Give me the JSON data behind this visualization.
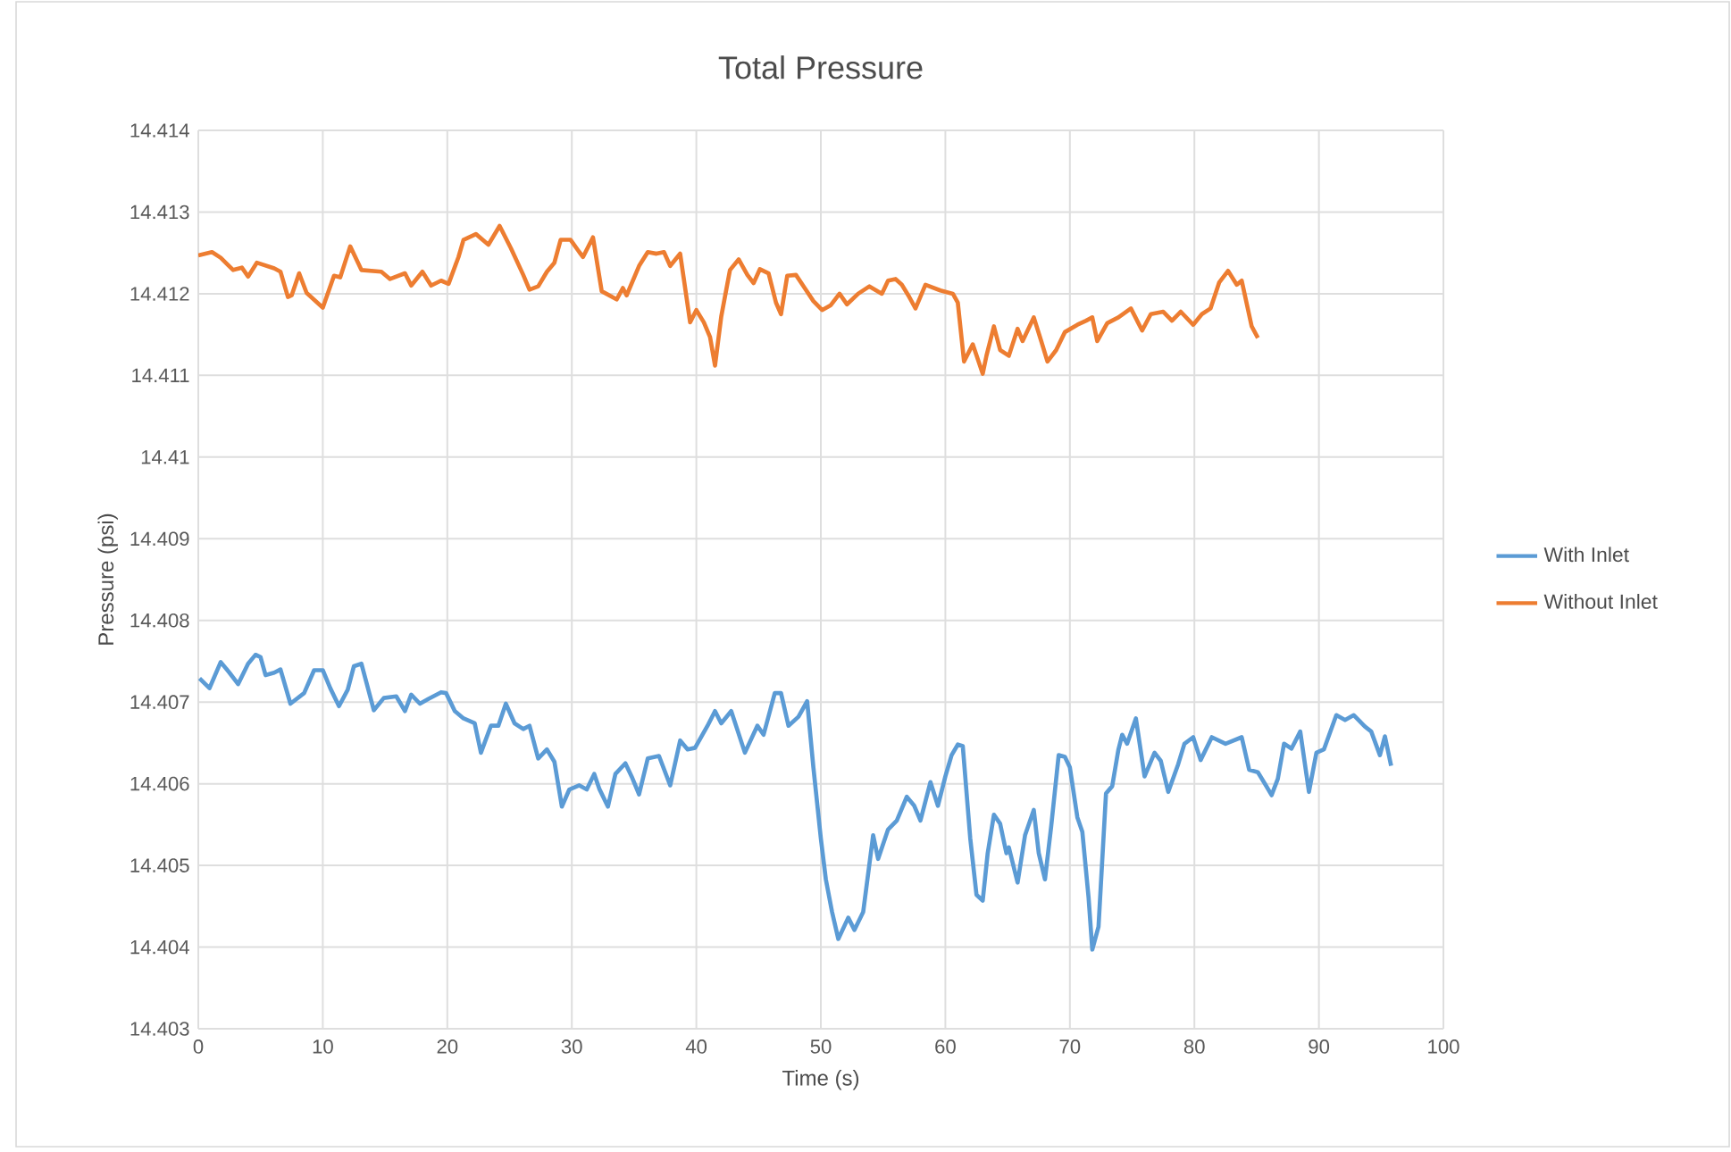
{
  "chart_data": {
    "type": "line",
    "title": "Total Pressure",
    "xlabel": "Time (s)",
    "ylabel": "Pressure (psi)",
    "xlim": [
      0,
      100
    ],
    "xticks": [
      0,
      10,
      20,
      30,
      40,
      50,
      60,
      70,
      80,
      90,
      100
    ],
    "ylim": [
      14.403,
      14.414
    ],
    "yticks": [
      14.403,
      14.404,
      14.405,
      14.406,
      14.407,
      14.408,
      14.409,
      14.41,
      14.411,
      14.412,
      14.413,
      14.414
    ],
    "grid": true,
    "legend": "right",
    "marker": "none",
    "line_style": "solid",
    "series": [
      {
        "name": "With Inlet",
        "color": "#5b9bd5",
        "x": [
          0.1,
          0.9,
          1.8,
          2.5,
          3.2,
          4,
          4.6,
          5,
          5.4,
          6.1,
          6.6,
          7.4,
          8.5,
          9.3,
          10,
          10.6,
          11.3,
          12,
          12.5,
          13.1,
          14.1,
          14.9,
          15.9,
          16.6,
          17.1,
          17.8,
          18.5,
          19.5,
          19.9,
          20.6,
          21.3,
          22.2,
          22.7,
          23.5,
          24.1,
          24.7,
          25.4,
          26.1,
          26.6,
          27.3,
          28,
          28.6,
          29.2,
          29.8,
          30.6,
          31.2,
          31.8,
          32.2,
          32.9,
          33.5,
          34.3,
          34.8,
          35.4,
          36.1,
          37,
          37.9,
          38.7,
          39.3,
          39.9,
          40.9,
          41.5,
          42,
          42.8,
          43.9,
          44.9,
          45.4,
          46.3,
          46.8,
          47.4,
          48.2,
          48.9,
          49.4,
          50,
          50.4,
          50.9,
          51.4,
          52.2,
          52.7,
          53.4,
          54.2,
          54.6,
          55.4,
          56.1,
          56.9,
          57.5,
          58,
          58.8,
          59.4,
          60,
          60.5,
          61,
          61.4,
          62,
          62.5,
          63,
          63.4,
          63.9,
          64.4,
          64.9,
          65.1,
          65.8,
          66.4,
          67.1,
          67.5,
          68,
          68.5,
          69.1,
          69.6,
          70,
          70.6,
          71,
          71.5,
          71.8,
          72.3,
          72.9,
          73.4,
          73.9,
          74.2,
          74.6,
          75.3,
          76,
          76.8,
          77.3,
          77.9,
          78.7,
          79.2,
          79.9,
          80.5,
          81.4,
          82.5,
          83.8,
          84.4,
          85.1,
          85.7,
          86.2,
          86.7,
          87.2,
          87.8,
          88.5,
          89.2,
          89.8,
          90.4,
          91.4,
          92.1,
          92.8,
          93.7,
          94.2,
          94.9,
          95.3,
          95.8
        ],
        "values": [
          14.40729,
          14.40717,
          14.40749,
          14.40736,
          14.40722,
          14.40747,
          14.40758,
          14.40755,
          14.40733,
          14.40736,
          14.4074,
          14.40698,
          14.40711,
          14.40739,
          14.40739,
          14.40717,
          14.40695,
          14.40715,
          14.40744,
          14.40747,
          14.4069,
          14.40705,
          14.40707,
          14.40689,
          14.40709,
          14.40698,
          14.40704,
          14.40712,
          14.40711,
          14.40689,
          14.4068,
          14.40674,
          14.40638,
          14.40671,
          14.40671,
          14.40698,
          14.40674,
          14.40667,
          14.40671,
          14.40631,
          14.40642,
          14.40627,
          14.40572,
          14.40593,
          14.40598,
          14.40593,
          14.40612,
          14.40594,
          14.40572,
          14.40612,
          14.40625,
          14.40609,
          14.40587,
          14.40631,
          14.40634,
          14.40598,
          14.40653,
          14.40642,
          14.40644,
          14.40671,
          14.40689,
          14.40674,
          14.40689,
          14.40638,
          14.40671,
          14.4066,
          14.40711,
          14.40711,
          14.40671,
          14.40682,
          14.40701,
          14.4062,
          14.40533,
          14.40483,
          14.40443,
          14.4041,
          14.40436,
          14.40421,
          14.40443,
          14.40537,
          14.40508,
          14.40544,
          14.40555,
          14.40584,
          14.40573,
          14.40555,
          14.40602,
          14.40573,
          14.40609,
          14.40635,
          14.40648,
          14.40646,
          14.40533,
          14.40464,
          14.40457,
          14.40515,
          14.40562,
          14.40551,
          14.40515,
          14.40522,
          14.40479,
          14.40537,
          14.40568,
          14.40515,
          14.40483,
          14.40548,
          14.40635,
          14.40633,
          14.4062,
          14.40559,
          14.40541,
          14.40461,
          14.40397,
          14.40425,
          14.40588,
          14.40597,
          14.40642,
          14.4066,
          14.40649,
          14.4068,
          14.40609,
          14.40638,
          14.40628,
          14.4059,
          14.40624,
          14.40649,
          14.40657,
          14.40629,
          14.40657,
          14.40649,
          14.40657,
          14.40617,
          14.40614,
          14.40599,
          14.40586,
          14.40606,
          14.40649,
          14.40643,
          14.40664,
          14.4059,
          14.40638,
          14.40642,
          14.40684,
          14.40678,
          14.40684,
          14.4067,
          14.40664,
          14.40635,
          14.40658,
          14.40622
        ]
      },
      {
        "name": "Without Inlet",
        "color": "#ed7d31",
        "x": [
          0,
          1.1,
          1.8,
          2.8,
          3.5,
          4,
          4.7,
          6.1,
          6.6,
          7.2,
          7.5,
          8.1,
          8.7,
          10,
          10.9,
          11.4,
          12.2,
          13.1,
          14.7,
          15.4,
          16.6,
          17.1,
          18,
          18.7,
          19.5,
          20.1,
          20.9,
          21.3,
          22.3,
          23.3,
          24.2,
          25.1,
          26.1,
          26.6,
          27.3,
          28,
          28.6,
          29.1,
          29.9,
          30.6,
          30.9,
          31.7,
          32.4,
          33.6,
          34.1,
          34.4,
          35.4,
          36.1,
          36.8,
          37.4,
          37.9,
          38.7,
          39.5,
          40,
          40.6,
          41.1,
          41.5,
          42,
          42.7,
          43.4,
          44.1,
          44.6,
          45.1,
          45.8,
          46.4,
          46.8,
          47.3,
          48,
          48.7,
          49.4,
          50.1,
          50.8,
          51.5,
          52.1,
          53,
          53.9,
          54.9,
          55.4,
          56,
          56.5,
          57.1,
          57.6,
          58.4,
          59.6,
          60.6,
          61,
          61.5,
          62.2,
          63,
          63.3,
          63.9,
          64.4,
          65.1,
          65.8,
          66.2,
          67.1,
          67.7,
          68.2,
          68.9,
          69.6,
          70.6,
          71.3,
          71.8,
          72.2,
          73,
          73.9,
          74.9,
          75.8,
          76.5,
          77.5,
          78.2,
          78.9,
          79.9,
          80.6,
          81.3,
          82,
          82.7,
          83.4,
          83.8,
          84.6,
          85.1
        ],
        "values": [
          14.41247,
          14.41251,
          14.41244,
          14.41229,
          14.41232,
          14.41221,
          14.41238,
          14.41231,
          14.41227,
          14.41196,
          14.41198,
          14.41225,
          14.41201,
          14.41183,
          14.41222,
          14.4122,
          14.41258,
          14.41229,
          14.41227,
          14.41218,
          14.41225,
          14.4121,
          14.41227,
          14.4121,
          14.41216,
          14.41212,
          14.41245,
          14.41266,
          14.41273,
          14.4126,
          14.41283,
          14.41256,
          14.41223,
          14.41205,
          14.41209,
          14.41227,
          14.41238,
          14.41266,
          14.41266,
          14.41251,
          14.41245,
          14.41269,
          14.41203,
          14.41193,
          14.41207,
          14.41198,
          14.41234,
          14.41251,
          14.41249,
          14.41251,
          14.41234,
          14.41249,
          14.41165,
          14.4118,
          14.41165,
          14.41147,
          14.41112,
          14.41172,
          14.41229,
          14.41242,
          14.41223,
          14.41213,
          14.4123,
          14.41225,
          14.41189,
          14.41175,
          14.41222,
          14.41223,
          14.41207,
          14.41191,
          14.4118,
          14.41186,
          14.412,
          14.41187,
          14.412,
          14.41209,
          14.412,
          14.41216,
          14.41218,
          14.41211,
          14.41196,
          14.41182,
          14.41211,
          14.41204,
          14.412,
          14.41189,
          14.41117,
          14.41138,
          14.41102,
          14.41124,
          14.4116,
          14.41131,
          14.41124,
          14.41157,
          14.41142,
          14.41171,
          14.41142,
          14.41117,
          14.41131,
          14.41153,
          14.41162,
          14.41167,
          14.41171,
          14.41142,
          14.41164,
          14.41171,
          14.41182,
          14.41155,
          14.41175,
          14.41178,
          14.41167,
          14.41178,
          14.41162,
          14.41175,
          14.41182,
          14.41214,
          14.41228,
          14.41211,
          14.41216,
          14.4116,
          14.41146
        ]
      }
    ]
  }
}
